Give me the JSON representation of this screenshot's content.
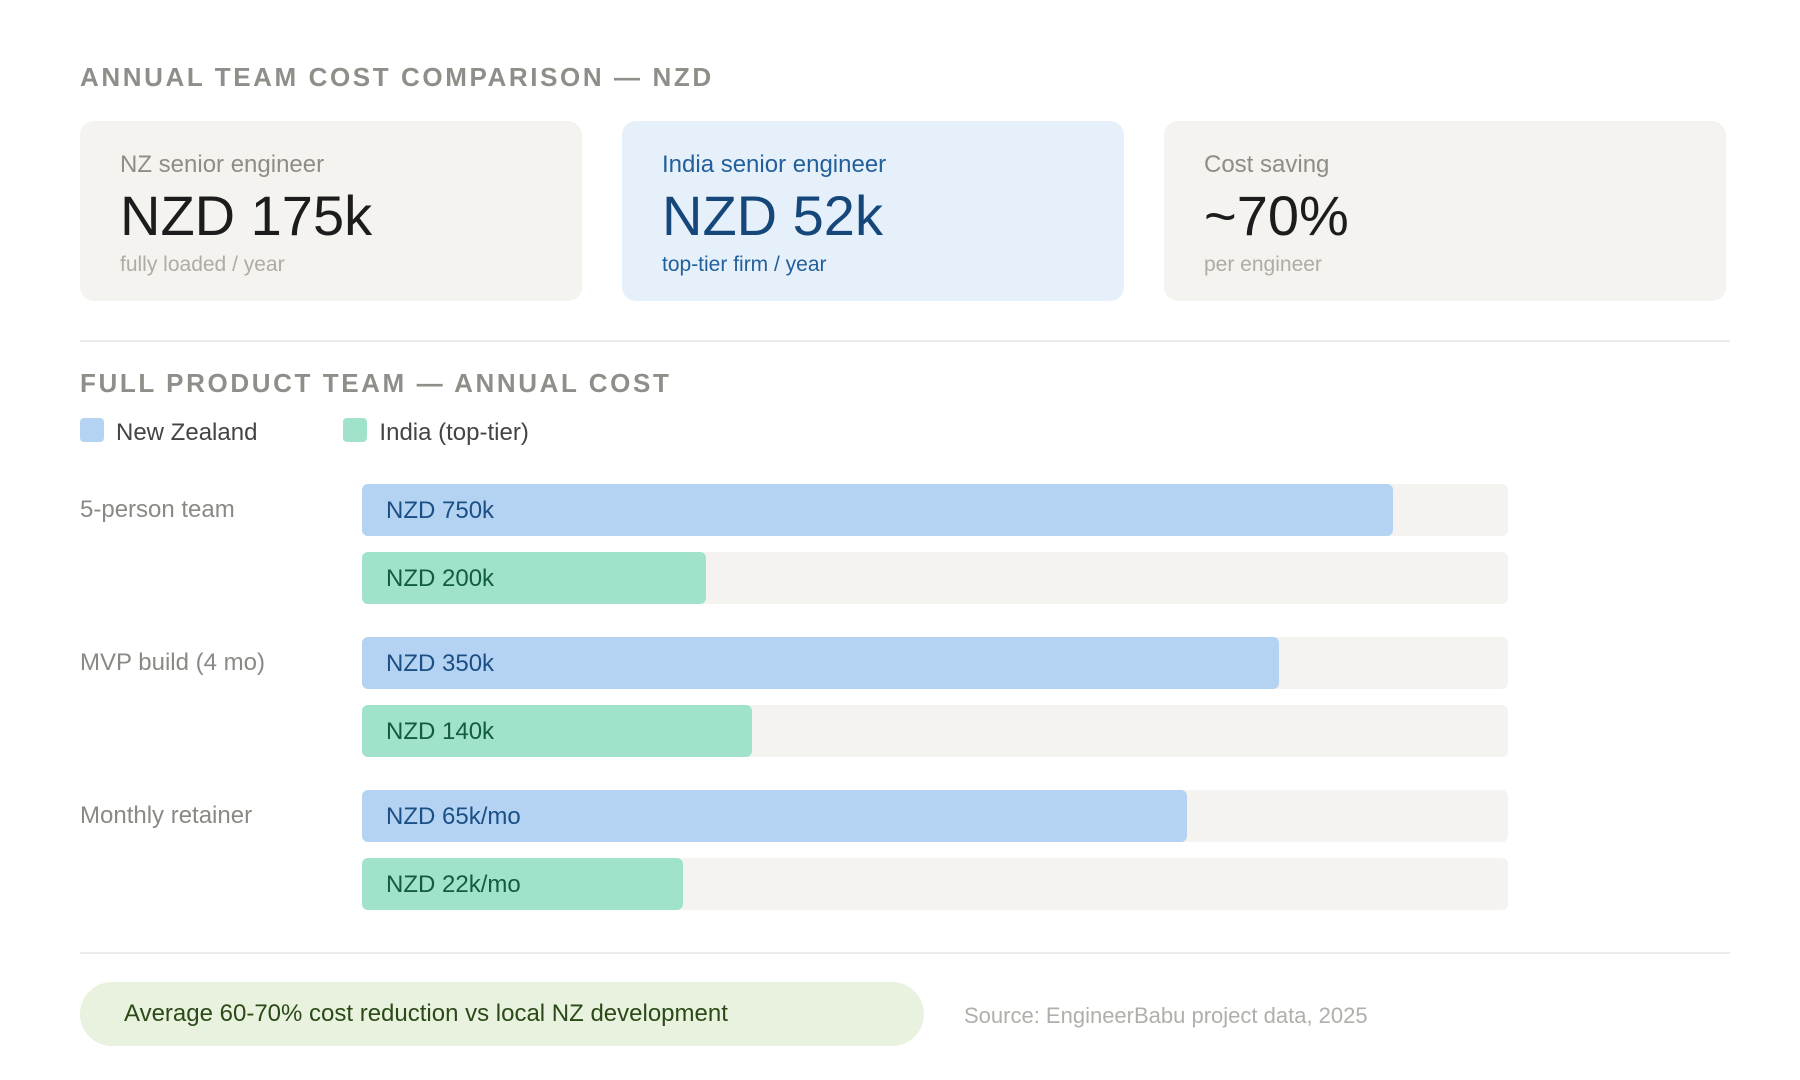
{
  "header": {
    "title": "ANNUAL TEAM COST COMPARISON — NZD"
  },
  "cards": [
    {
      "label": "NZ senior engineer",
      "value": "NZD 175k",
      "sub": "fully loaded / year"
    },
    {
      "label": "India senior engineer",
      "value": "NZD 52k",
      "sub": "top-tier firm / year"
    },
    {
      "label": "Cost saving",
      "value": "~70%",
      "sub": "per engineer"
    }
  ],
  "section2": {
    "title": "FULL PRODUCT TEAM — ANNUAL COST"
  },
  "colors": {
    "nz": "#b4d3f2",
    "india": "#a1e2cb",
    "track": "#f4f3ef",
    "highlight_card": "#e6f0fa"
  },
  "chart_data": {
    "type": "bar",
    "orientation": "horizontal",
    "categories": [
      "5-person team",
      "MVP build (4 mo)",
      "Monthly retainer"
    ],
    "series": [
      {
        "name": "New Zealand",
        "color": "#b4d3f2",
        "labels": [
          "NZD 750k",
          "NZD 350k",
          "NZD 65k/mo"
        ],
        "fill": [
          0.9,
          0.8,
          0.72
        ]
      },
      {
        "name": "India (top-tier)",
        "color": "#a1e2cb",
        "labels": [
          "NZD 200k",
          "NZD 140k",
          "NZD 22k/mo"
        ],
        "fill": [
          0.3,
          0.34,
          0.28
        ]
      }
    ],
    "legend": "top-left",
    "grid": false
  },
  "footer": {
    "highlight": "Average 60-70% cost reduction vs local NZ development",
    "source": "Source: EngineerBabu project data, 2025"
  }
}
